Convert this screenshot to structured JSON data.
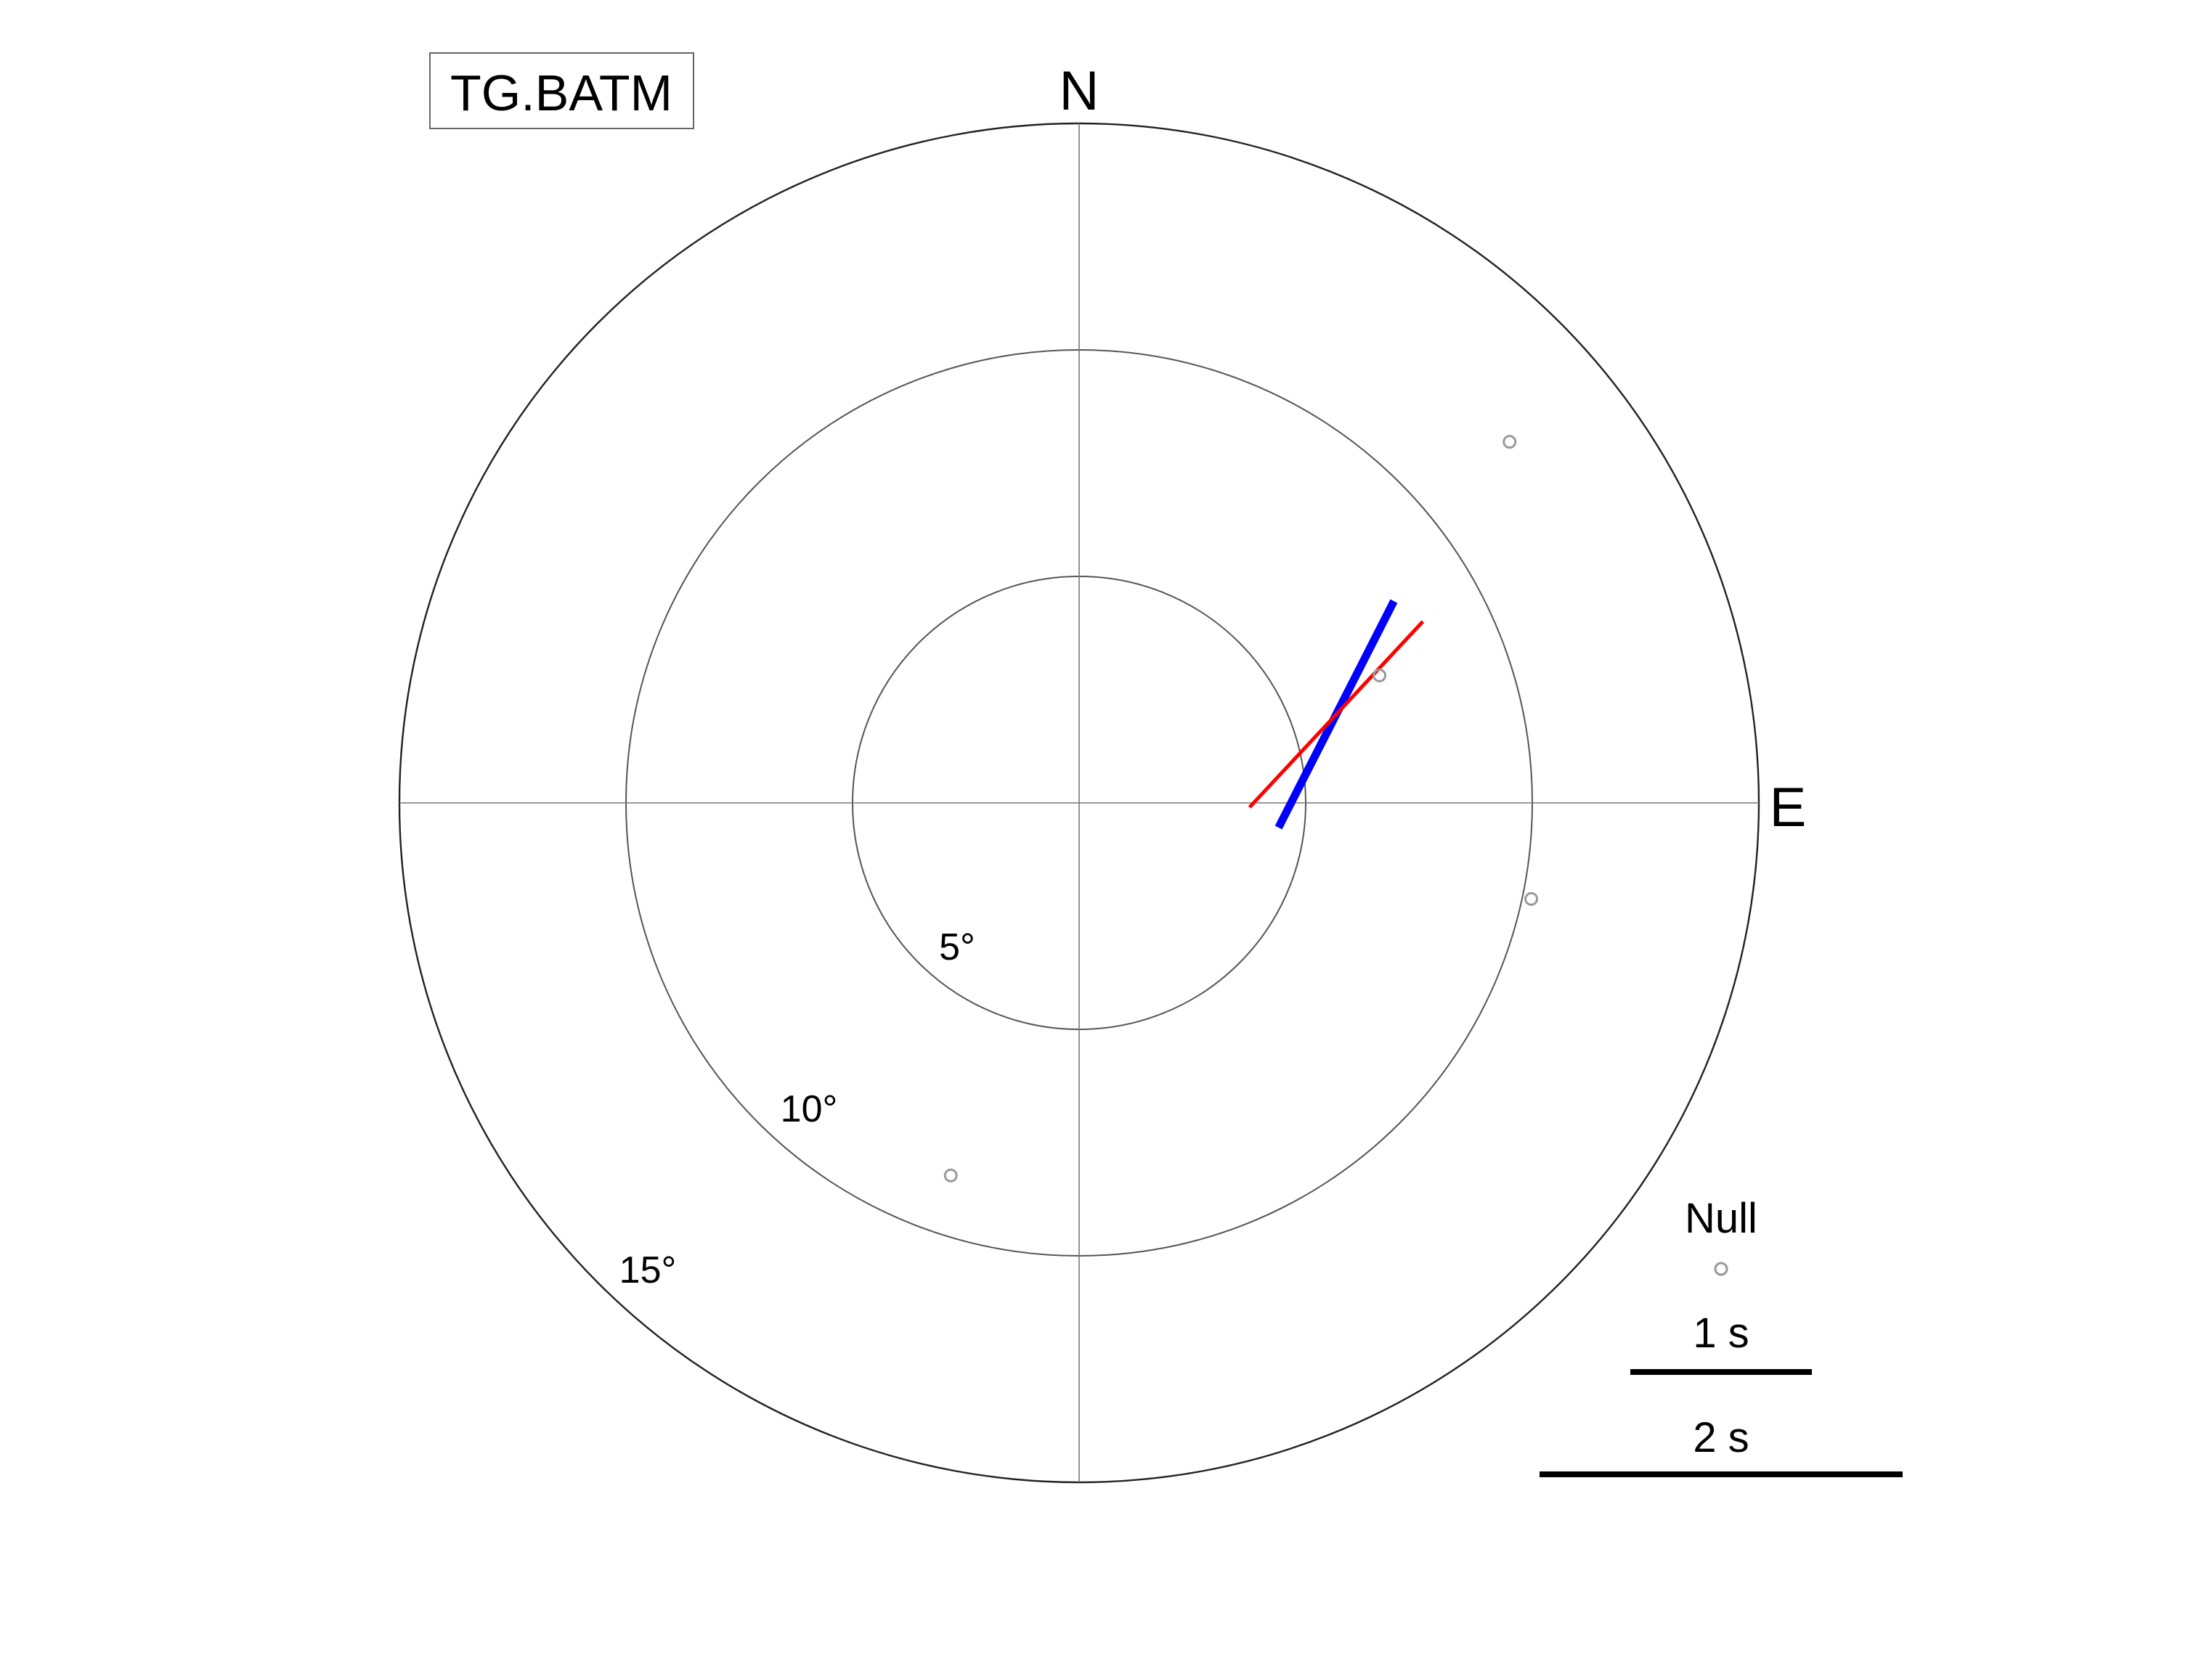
{
  "station": {
    "name": "TG.BATM"
  },
  "compass": {
    "north": "N",
    "east": "E"
  },
  "legend": {
    "null_label": "Null",
    "scale_1s": "1 s",
    "scale_2s": "2 s"
  },
  "colors": {
    "fast_axis": "#0000ff",
    "reference_axis": "#ff0000",
    "null": "#999999"
  },
  "chart_data": {
    "type": "scatter",
    "title": "TG.BATM",
    "projection": "polar",
    "radial_unit": "degrees incidence",
    "radial_ticks": [
      5,
      10,
      15
    ],
    "radial_tick_labels": [
      "5°",
      "10°",
      "15°"
    ],
    "rmax": 15,
    "grid": true,
    "compass_labels": [
      "N",
      "E"
    ],
    "legend_placement": "bottom-right",
    "splitting_measurements": [
      {
        "name": "blue",
        "color": "#0000ff",
        "center": {
          "azimuth_deg": 71,
          "incidence_deg": 6.0
        },
        "azimuth_deg": 27,
        "delay_s": 1.4
      },
      {
        "name": "red",
        "color": "#ff0000",
        "center": {
          "azimuth_deg": 71,
          "incidence_deg": 6.0
        },
        "azimuth_deg": 43,
        "delay_s": 1.4
      }
    ],
    "nulls": [
      {
        "azimuth_deg": 67,
        "incidence_deg": 7.2
      },
      {
        "azimuth_deg": 50,
        "incidence_deg": 12.4
      },
      {
        "azimuth_deg": 102,
        "incidence_deg": 10.2
      },
      {
        "azimuth_deg": 199,
        "incidence_deg": 8.7
      }
    ]
  }
}
